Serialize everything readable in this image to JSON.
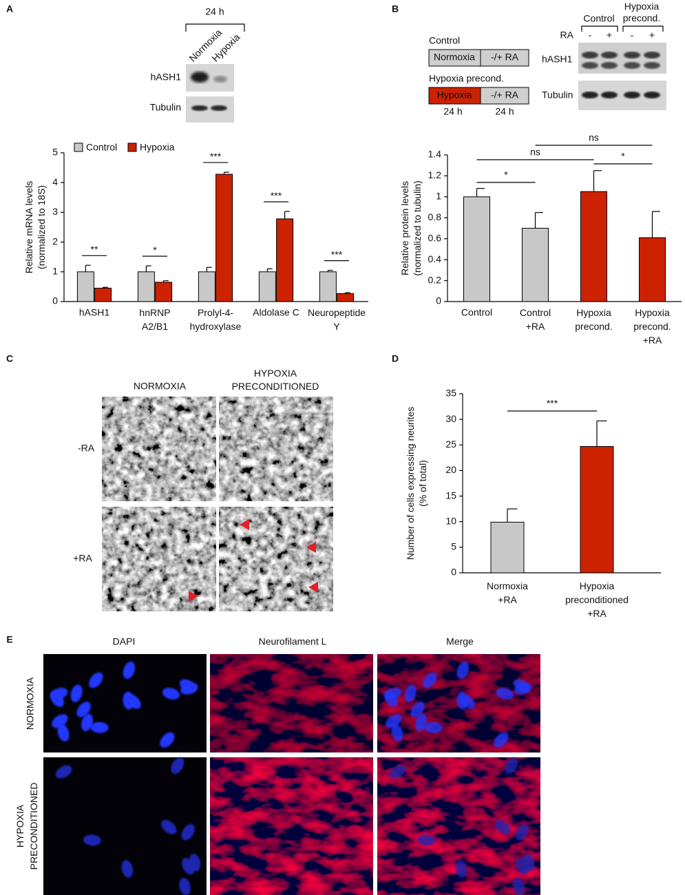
{
  "chart_data": [
    {
      "type": "bar",
      "y_label": "Relative mRNA levels\n(normalized to 18S)",
      "categories": [
        "hASH1",
        "hnRNP\nA2/B1",
        "Prolyl-4-\nhydroxylase",
        "Aldolase C",
        "Neuropeptide\nY"
      ],
      "series": [
        {
          "name": "Control",
          "color": "#c8c8c8",
          "values": [
            1,
            1,
            1,
            1,
            1
          ],
          "errors": [
            0.22,
            0.2,
            0.15,
            0.1,
            0.05
          ]
        },
        {
          "name": "Hypoxia",
          "color": "#cc2200",
          "values": [
            0.45,
            0.65,
            4.28,
            2.78,
            0.27
          ],
          "errors": [
            0.03,
            0.05,
            0.07,
            0.25,
            0.03
          ]
        }
      ],
      "annotations": [
        "**",
        "*",
        "***",
        "***",
        "***"
      ],
      "ylim": [
        0,
        5
      ],
      "yticks": [
        0,
        1,
        2,
        3,
        4,
        5
      ]
    },
    {
      "type": "bar",
      "y_label": "Relative protein levels\n(normalized to tubulin)",
      "categories": [
        "Control",
        "Control\n+RA",
        "Hypoxia\nprecond.",
        "Hypoxia\nprecond.\n+RA"
      ],
      "values": [
        1.0,
        0.7,
        1.05,
        0.61
      ],
      "errors": [
        0.08,
        0.15,
        0.2,
        0.25
      ],
      "colors": [
        "#c8c8c8",
        "#c8c8c8",
        "#cc2200",
        "#cc2200"
      ],
      "annotations": [
        "*",
        "ns",
        "*",
        "ns"
      ],
      "ylim": [
        0,
        1.4
      ],
      "yticks": [
        0,
        0.2,
        0.4,
        0.6,
        0.8,
        1,
        1.2,
        1.4
      ]
    },
    {
      "type": "bar",
      "y_label": "Number of cells expressing neurites\n(% of total)",
      "categories": [
        "Normoxia\n+RA",
        "Hypoxia\npreconditioned\n+RA"
      ],
      "values": [
        9.9,
        24.7
      ],
      "errors": [
        2.6,
        5.0
      ],
      "colors": [
        "#c8c8c8",
        "#cc2200"
      ],
      "annotations": [
        "***"
      ],
      "ylim": [
        0,
        35
      ],
      "yticks": [
        0,
        5,
        10,
        15,
        20,
        25,
        30,
        35
      ]
    }
  ],
  "figure": {
    "panel_labels": [
      "A",
      "B",
      "C",
      "D",
      "E"
    ],
    "blot_a": {
      "time": "24 h",
      "lanes": [
        "Normoxia",
        "Hypoxia"
      ],
      "rows": [
        "hASH1",
        "Tubulin"
      ]
    },
    "scheme_b": {
      "control": "Control",
      "control_stage": "Normoxia",
      "treatment": "-/+ RA",
      "hypoxia": "Hypoxia precond.",
      "hypoxia_stage": "Hypoxia",
      "treatment_2": "-/+ RA",
      "durations": [
        "24 h",
        "24 h"
      ]
    },
    "blot_b": {
      "groups": [
        "Control",
        "Hypoxia\nprecond."
      ],
      "ra_label": "RA",
      "ra_lanes": [
        "-",
        "+",
        "-",
        "+"
      ],
      "rows": [
        "hASH1",
        "Tubulin"
      ]
    },
    "micrographs_c": {
      "columns": [
        "NORMOXIA",
        "HYPOXIA\nPRECONDITIONED"
      ],
      "rows": [
        "-RA",
        "+RA"
      ]
    },
    "fluorescence_e": {
      "columns": [
        "DAPI",
        "Neurofilament L",
        "Merge"
      ],
      "rows": [
        "NORMOXIA",
        "HYPOXIA\nPRECONDITIONED"
      ]
    }
  }
}
